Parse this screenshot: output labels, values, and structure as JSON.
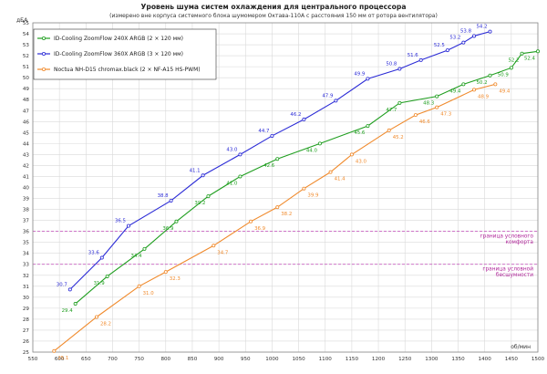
{
  "chart_data": {
    "type": "line",
    "title": "Уровень шума систем охлаждения для центрального процессора",
    "subtitle": "(измерено вне корпуса системного блока шумомером Октава-110А с расстояния 150 мм от ротора вентилятора)",
    "xlabel": "об/мин",
    "ylabel": "дБА",
    "xlim": [
      550,
      1500
    ],
    "ylim": [
      25,
      55
    ],
    "x_ticks": [
      550,
      600,
      650,
      700,
      750,
      800,
      850,
      900,
      950,
      1000,
      1050,
      1100,
      1150,
      1200,
      1250,
      1300,
      1350,
      1400,
      1450,
      1500
    ],
    "y_ticks": [
      25,
      26,
      27,
      28,
      29,
      30,
      31,
      32,
      33,
      34,
      35,
      36,
      37,
      38,
      39,
      40,
      41,
      42,
      43,
      44,
      45,
      46,
      47,
      48,
      49,
      50,
      51,
      52,
      53,
      54,
      55
    ],
    "grid": true,
    "legend_position": "top-left",
    "series": [
      {
        "name": "ID-Cooling ZoomFlow 240X ARGB (2 × 120 мм)",
        "color": "#1f9e1f",
        "points": [
          {
            "x": 630,
            "y": 29.4
          },
          {
            "x": 690,
            "y": 31.9
          },
          {
            "x": 760,
            "y": 34.4
          },
          {
            "x": 820,
            "y": 36.9
          },
          {
            "x": 880,
            "y": 39.2
          },
          {
            "x": 940,
            "y": 41.0
          },
          {
            "x": 1010,
            "y": 42.6
          },
          {
            "x": 1090,
            "y": 44.0
          },
          {
            "x": 1180,
            "y": 45.6
          },
          {
            "x": 1240,
            "y": 47.7
          },
          {
            "x": 1310,
            "y": 48.3
          },
          {
            "x": 1360,
            "y": 49.4
          },
          {
            "x": 1410,
            "y": 50.2
          },
          {
            "x": 1450,
            "y": 50.9
          },
          {
            "x": 1470,
            "y": 52.2
          },
          {
            "x": 1500,
            "y": 52.4
          }
        ]
      },
      {
        "name": "ID-Cooling ZoomFlow 360X ARGB (3 × 120 мм)",
        "color": "#2b2bd6",
        "points": [
          {
            "x": 620,
            "y": 30.7
          },
          {
            "x": 680,
            "y": 33.6
          },
          {
            "x": 730,
            "y": 36.5
          },
          {
            "x": 810,
            "y": 38.8
          },
          {
            "x": 870,
            "y": 41.1
          },
          {
            "x": 940,
            "y": 43.0
          },
          {
            "x": 1000,
            "y": 44.7
          },
          {
            "x": 1060,
            "y": 46.2
          },
          {
            "x": 1120,
            "y": 47.9
          },
          {
            "x": 1180,
            "y": 49.9
          },
          {
            "x": 1240,
            "y": 50.8
          },
          {
            "x": 1280,
            "y": 51.6
          },
          {
            "x": 1330,
            "y": 52.5
          },
          {
            "x": 1360,
            "y": 53.2
          },
          {
            "x": 1380,
            "y": 53.8
          },
          {
            "x": 1410,
            "y": 54.2
          }
        ]
      },
      {
        "name": "Noctua NH-D15 chromax.black (2 × NF-A15 HS-PWM)",
        "color": "#f08a2c",
        "points": [
          {
            "x": 590,
            "y": 25.1
          },
          {
            "x": 670,
            "y": 28.2
          },
          {
            "x": 750,
            "y": 31.0
          },
          {
            "x": 800,
            "y": 32.3
          },
          {
            "x": 890,
            "y": 34.7
          },
          {
            "x": 960,
            "y": 36.9
          },
          {
            "x": 1010,
            "y": 38.2
          },
          {
            "x": 1060,
            "y": 39.9
          },
          {
            "x": 1110,
            "y": 41.4
          },
          {
            "x": 1150,
            "y": 43.0
          },
          {
            "x": 1220,
            "y": 45.2
          },
          {
            "x": 1270,
            "y": 46.6
          },
          {
            "x": 1310,
            "y": 47.3
          },
          {
            "x": 1380,
            "y": 48.9
          },
          {
            "x": 1420,
            "y": 49.4
          }
        ]
      }
    ],
    "reference_lines": [
      {
        "y": 36,
        "label_lines": [
          "граница условного",
          "комфорта"
        ],
        "color": "#c048b8"
      },
      {
        "y": 33,
        "label_lines": [
          "граница условной",
          "бесшумности"
        ],
        "color": "#c048b8"
      }
    ]
  }
}
